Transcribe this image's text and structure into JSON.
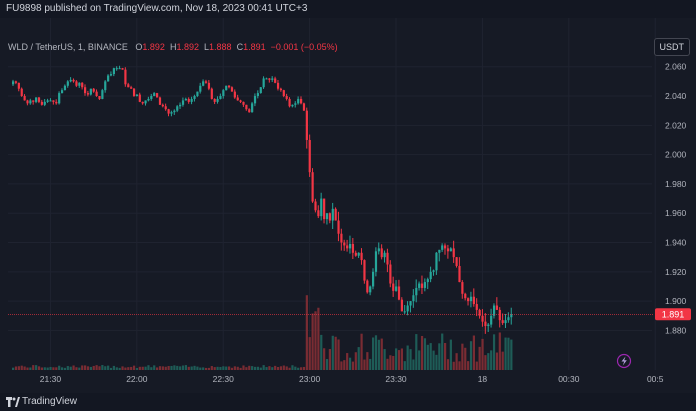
{
  "publish_line": "FU9898 published on TradingView.com, Nov 18, 2023 00:41 UTC+3",
  "legend": {
    "symbol": "WLD / TetherUS, 1, BINANCE",
    "o_label": "O",
    "o_value": "1.892",
    "h_label": "H",
    "h_value": "1.892",
    "l_label": "L",
    "l_value": "1.888",
    "c_label": "C",
    "c_value": "1.891",
    "change": "−0.001 (−0.05%)"
  },
  "currency_badge": "USDT",
  "current_price": "1.891",
  "footer_brand": "TradingView",
  "colors": {
    "up": "#26a69a",
    "down": "#f23645",
    "background": "#161a25",
    "vol_up": "#1e5c57",
    "vol_down": "#7a2c33",
    "grid": "#1f2330",
    "text": "#b2b5be"
  },
  "chart_data": {
    "type": "candlestick",
    "title": "",
    "xlabel": "",
    "ylabel": "",
    "ylim": [
      1.868,
      2.068
    ],
    "y_ticks": [
      "2.060",
      "2.040",
      "2.020",
      "2.000",
      "1.980",
      "1.960",
      "1.940",
      "1.920",
      "1.900",
      "1.880"
    ],
    "x_ticks": [
      "21:30",
      "22:00",
      "22:30",
      "23:00",
      "23:30",
      "18",
      "00:30",
      "00:5"
    ],
    "x_tick_minutes": [
      0,
      30,
      60,
      90,
      120,
      150,
      180,
      210
    ],
    "start_time": "21:17",
    "interval_minutes": 1,
    "closes": [
      2.05,
      2.049,
      2.045,
      2.04,
      2.037,
      2.035,
      2.037,
      2.036,
      2.039,
      2.036,
      2.034,
      2.036,
      2.037,
      2.037,
      2.036,
      2.035,
      2.042,
      2.044,
      2.047,
      2.05,
      2.051,
      2.05,
      2.047,
      2.049,
      2.046,
      2.042,
      2.041,
      2.045,
      2.043,
      2.04,
      2.038,
      2.044,
      2.05,
      2.054,
      2.055,
      2.059,
      2.059,
      2.059,
      2.058,
      2.048,
      2.046,
      2.045,
      2.04,
      2.041,
      2.036,
      2.035,
      2.037,
      2.038,
      2.04,
      2.042,
      2.039,
      2.034,
      2.033,
      2.031,
      2.028,
      2.029,
      2.03,
      2.033,
      2.034,
      2.037,
      2.038,
      2.036,
      2.038,
      2.04,
      2.043,
      2.047,
      2.05,
      2.049,
      2.045,
      2.038,
      2.036,
      2.038,
      2.04,
      2.044,
      2.047,
      2.046,
      2.043,
      2.039,
      2.037,
      2.036,
      2.034,
      2.031,
      2.029,
      2.035,
      2.04,
      2.042,
      2.046,
      2.052,
      2.052,
      2.051,
      2.052,
      2.049,
      2.045,
      2.044,
      2.04,
      2.038,
      2.033,
      2.034,
      2.035,
      2.038,
      2.035,
      2.03,
      2.01,
      1.988,
      1.968,
      1.962,
      1.958,
      1.97,
      1.956,
      1.96,
      1.955,
      1.963,
      1.955,
      1.946,
      1.94,
      1.938,
      1.936,
      1.939,
      1.933,
      1.931,
      1.933,
      1.928,
      1.914,
      1.906,
      1.91,
      1.92,
      1.934,
      1.936,
      1.93,
      1.933,
      1.925,
      1.912,
      1.907,
      1.91,
      1.901,
      1.893,
      1.893,
      1.897,
      1.9,
      1.904,
      1.909,
      1.912,
      1.909,
      1.913,
      1.915,
      1.92,
      1.921,
      1.933,
      1.935,
      1.938,
      1.936,
      1.934,
      1.936,
      1.93,
      1.924,
      1.913,
      1.905,
      1.902,
      1.9,
      1.903,
      1.898,
      1.894,
      1.89,
      1.886,
      1.883,
      1.884,
      1.89,
      1.897,
      1.894,
      1.887,
      1.885,
      1.887,
      1.889,
      1.891
    ]
  }
}
